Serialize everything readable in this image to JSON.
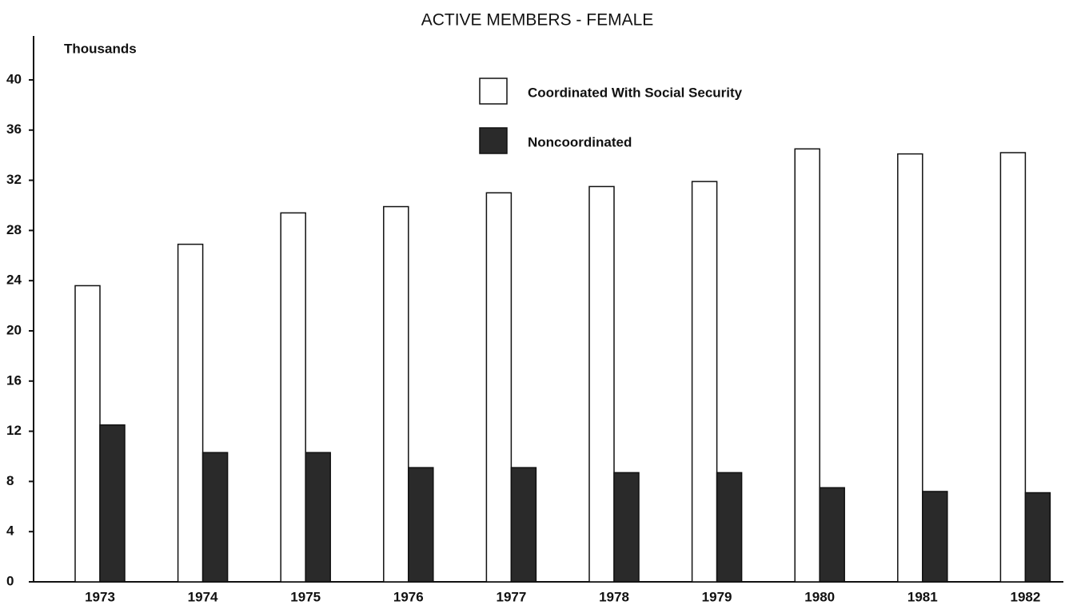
{
  "chart_data": {
    "type": "bar",
    "title": "ACTIVE MEMBERS - FEMALE",
    "y_label": "Thousands",
    "categories": [
      "1973",
      "1974",
      "1975",
      "1976",
      "1977",
      "1978",
      "1979",
      "1980",
      "1981",
      "1982"
    ],
    "series": [
      {
        "name": "Coordinated With Social Security",
        "color": "#ffffff",
        "values": [
          23.6,
          26.9,
          29.4,
          29.9,
          31.0,
          31.5,
          31.9,
          34.5,
          34.1,
          34.2
        ]
      },
      {
        "name": "Noncoordinated",
        "color": "#2a2a2a",
        "values": [
          12.5,
          10.3,
          10.3,
          9.1,
          9.1,
          8.7,
          8.7,
          7.5,
          7.2,
          7.1
        ]
      }
    ],
    "ylim": [
      0,
      43.5
    ],
    "yticks": [
      0,
      4,
      8,
      12,
      16,
      20,
      24,
      28,
      32,
      36,
      40
    ],
    "grid": false
  }
}
